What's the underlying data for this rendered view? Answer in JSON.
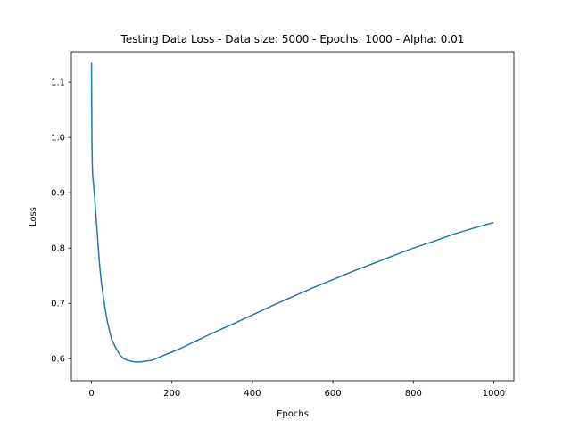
{
  "chart_data": {
    "type": "line",
    "title": "Testing Data Loss - Data size: 5000 - Epochs: 1000 - Alpha: 0.01",
    "xlabel": "Epochs",
    "ylabel": "Loss",
    "xlim": [
      -50,
      1050
    ],
    "ylim": [
      0.56,
      1.155
    ],
    "xticks": [
      0,
      200,
      400,
      600,
      800,
      1000
    ],
    "xtick_labels": [
      "0",
      "200",
      "400",
      "600",
      "800",
      "1000"
    ],
    "yticks": [
      0.6,
      0.7,
      0.8,
      0.9,
      1.0,
      1.1
    ],
    "ytick_labels": [
      "0.6",
      "0.7",
      "0.8",
      "0.9",
      "1.0",
      "1.1"
    ],
    "grid": false,
    "legend": "none",
    "series": [
      {
        "color": "#1f77b4",
        "x": [
          0,
          1,
          2,
          3,
          5,
          8,
          10,
          15,
          20,
          25,
          30,
          35,
          40,
          45,
          50,
          60,
          70,
          80,
          90,
          100,
          110,
          120,
          130,
          140,
          150,
          160,
          170,
          180,
          200,
          220,
          240,
          260,
          280,
          300,
          350,
          400,
          450,
          500,
          550,
          600,
          650,
          700,
          750,
          800,
          850,
          900,
          950,
          1000
        ],
        "y": [
          1.135,
          1.0,
          0.95,
          0.93,
          0.915,
          0.89,
          0.87,
          0.82,
          0.77,
          0.735,
          0.71,
          0.685,
          0.665,
          0.65,
          0.635,
          0.62,
          0.607,
          0.6,
          0.597,
          0.595,
          0.594,
          0.594,
          0.595,
          0.596,
          0.597,
          0.6,
          0.603,
          0.606,
          0.612,
          0.618,
          0.625,
          0.632,
          0.639,
          0.646,
          0.662,
          0.679,
          0.696,
          0.712,
          0.728,
          0.743,
          0.758,
          0.772,
          0.786,
          0.8,
          0.812,
          0.825,
          0.836,
          0.846
        ]
      }
    ]
  }
}
